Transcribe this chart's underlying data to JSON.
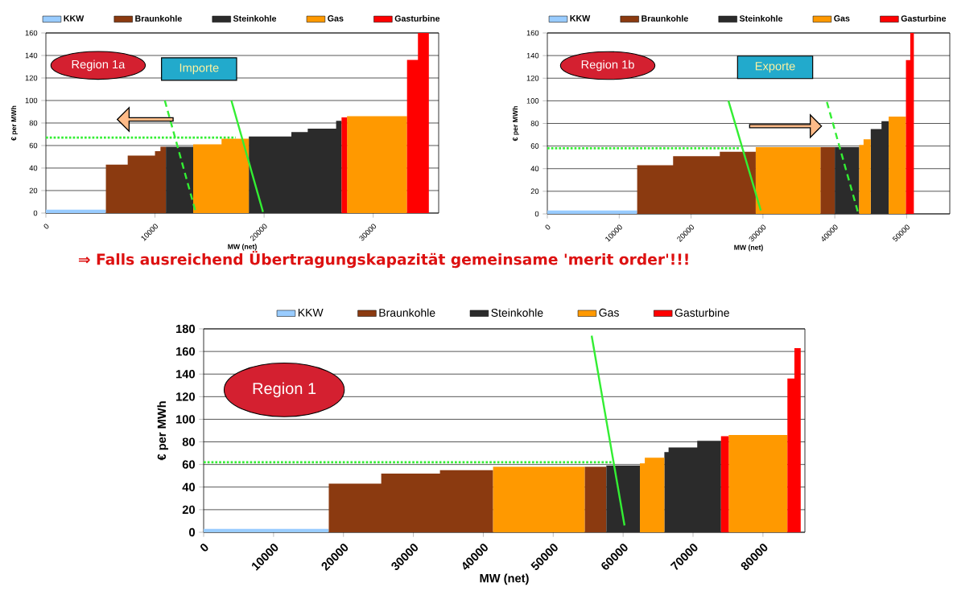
{
  "chart_data": [
    {
      "type": "area",
      "xlabel": "MW (net)",
      "ylabel": "€ per MWh",
      "xlim": [
        0,
        36000
      ],
      "ylim": [
        0,
        160
      ],
      "xticks": [
        0,
        10000,
        20000,
        30000
      ],
      "yticks": [
        0,
        20,
        40,
        60,
        80,
        100,
        120,
        140,
        160
      ],
      "grid": "y",
      "legend": "top",
      "marker": "none",
      "annotations": [
        "Region 1a",
        "Importe"
      ],
      "series": [
        {
          "name": "KKW",
          "color": "#99ccff",
          "x": [
            0,
            5500
          ],
          "values": [
            3,
            3
          ]
        },
        {
          "name": "Braunkohle",
          "color": "#8b3a10",
          "x": [
            5500,
            7500,
            7500,
            10000,
            10000,
            10500,
            10500,
            11000
          ],
          "values": [
            43,
            43,
            51,
            51,
            55,
            55,
            59,
            59
          ]
        },
        {
          "name": "Steinkohle",
          "color": "#2b2b2b",
          "x": [
            11000,
            13500,
            null,
            18600,
            22500,
            22500,
            24000,
            24000,
            26600,
            26600,
            27100
          ],
          "values": [
            59,
            59,
            null,
            68,
            68,
            72,
            72,
            75,
            75,
            82,
            82
          ]
        },
        {
          "name": "Gas",
          "color": "#ff9900",
          "x": [
            13500,
            16100,
            16100,
            18600,
            null,
            27600,
            33100
          ],
          "values": [
            61,
            61,
            66,
            66,
            null,
            86,
            86
          ]
        },
        {
          "name": "Gasturbine",
          "color": "#ff0000",
          "x": [
            27100,
            27600,
            null,
            33100,
            34100,
            34100,
            35100
          ],
          "values": [
            85,
            85,
            null,
            136,
            136,
            160,
            160
          ]
        },
        {
          "type": "line",
          "color": "#33ee33",
          "line_style": "dotted",
          "x": [
            0,
            17400
          ],
          "values": [
            67,
            67
          ]
        },
        {
          "type": "line",
          "color": "#33ee33",
          "line_style": "dashed",
          "x": [
            10900,
            13700
          ],
          "values": [
            100,
            2
          ]
        },
        {
          "type": "line",
          "color": "#33ee33",
          "line_style": "solid",
          "x": [
            17000,
            19900
          ],
          "values": [
            100,
            1
          ]
        }
      ]
    },
    {
      "type": "area",
      "xlabel": "MW (net)",
      "ylabel": "€ per MWh",
      "xlim": [
        0,
        56000
      ],
      "ylim": [
        0,
        160
      ],
      "xticks": [
        0,
        10000,
        20000,
        30000,
        40000,
        50000
      ],
      "yticks": [
        0,
        20,
        40,
        60,
        80,
        100,
        120,
        140,
        160
      ],
      "grid": "y",
      "legend": "top",
      "marker": "none",
      "annotations": [
        "Region 1b",
        "Exporte"
      ],
      "series": [
        {
          "name": "KKW",
          "color": "#99ccff",
          "x": [
            0,
            12500
          ],
          "values": [
            3,
            3
          ]
        },
        {
          "name": "Braunkohle",
          "color": "#8b3a10",
          "x": [
            12500,
            17500,
            17500,
            24000,
            24000,
            29000,
            null,
            38000,
            40000
          ],
          "values": [
            43,
            43,
            51,
            51,
            55,
            55,
            null,
            59,
            59
          ]
        },
        {
          "name": "Steinkohle",
          "color": "#2b2b2b",
          "x": [
            40000,
            43400,
            null,
            45000,
            46500,
            46500,
            47500
          ],
          "values": [
            59,
            59,
            null,
            75,
            75,
            82,
            82
          ]
        },
        {
          "name": "Gas",
          "color": "#ff9900",
          "x": [
            29000,
            38000,
            null,
            43400,
            44000,
            44000,
            45000,
            null,
            47500,
            49900
          ],
          "values": [
            59,
            59,
            null,
            61,
            61,
            66,
            66,
            null,
            86,
            86
          ]
        },
        {
          "name": "Gasturbine",
          "color": "#ff0000",
          "x": [
            49900,
            50500,
            50500,
            51000
          ],
          "values": [
            136,
            136,
            160,
            160
          ]
        },
        {
          "type": "line",
          "color": "#33ee33",
          "line_style": "dotted",
          "x": [
            0,
            26900
          ],
          "values": [
            58,
            58
          ]
        },
        {
          "type": "line",
          "color": "#33ee33",
          "line_style": "solid",
          "x": [
            25200,
            29700
          ],
          "values": [
            100,
            3
          ]
        },
        {
          "type": "line",
          "color": "#33ee33",
          "line_style": "dashed",
          "x": [
            38900,
            43200
          ],
          "values": [
            99,
            2
          ]
        }
      ]
    },
    {
      "type": "area",
      "title": "⇒ Falls ausreichend Übertragungskapazität gemeinsame 'merit order'!!!",
      "xlabel": "MW (net)",
      "ylabel": "€ per MWh",
      "xlim": [
        0,
        86000
      ],
      "ylim": [
        0,
        180
      ],
      "xticks": [
        0,
        10000,
        20000,
        30000,
        40000,
        50000,
        60000,
        70000,
        80000
      ],
      "yticks": [
        0,
        20,
        40,
        60,
        80,
        100,
        120,
        140,
        160,
        180
      ],
      "grid": "y",
      "legend": "top",
      "marker": "none",
      "annotations": [
        "Region 1"
      ],
      "series": [
        {
          "name": "KKW",
          "color": "#99ccff",
          "x": [
            0,
            17900
          ],
          "values": [
            3,
            3
          ]
        },
        {
          "name": "Braunkohle",
          "color": "#8b3a10",
          "x": [
            17900,
            25400,
            25400,
            33800,
            33800,
            41400,
            null,
            54500,
            57600
          ],
          "values": [
            43,
            43,
            52,
            52,
            55,
            55,
            null,
            58,
            58
          ]
        },
        {
          "name": "Steinkohle",
          "color": "#2b2b2b",
          "x": [
            57600,
            62400,
            null,
            65900,
            66500,
            66500,
            70600,
            70600,
            74000
          ],
          "values": [
            59,
            59,
            null,
            71,
            71,
            75,
            75,
            81,
            81
          ]
        },
        {
          "name": "Gas",
          "color": "#ff9900",
          "x": [
            41400,
            54500,
            null,
            62400,
            63100,
            63100,
            65900,
            null,
            75100,
            83500
          ],
          "values": [
            58,
            58,
            null,
            61,
            61,
            66,
            66,
            null,
            86,
            86
          ]
        },
        {
          "name": "Gasturbine",
          "color": "#ff0000",
          "x": [
            74000,
            75100,
            null,
            83500,
            84500,
            84500,
            85400
          ],
          "values": [
            85,
            85,
            null,
            136,
            136,
            163,
            163
          ]
        },
        {
          "type": "line",
          "color": "#33ee33",
          "line_style": "dotted",
          "x": [
            0,
            58400
          ],
          "values": [
            62,
            62
          ]
        },
        {
          "type": "line",
          "color": "#33ee33",
          "line_style": "solid",
          "x": [
            55500,
            60200
          ],
          "values": [
            174,
            6
          ]
        }
      ]
    }
  ]
}
